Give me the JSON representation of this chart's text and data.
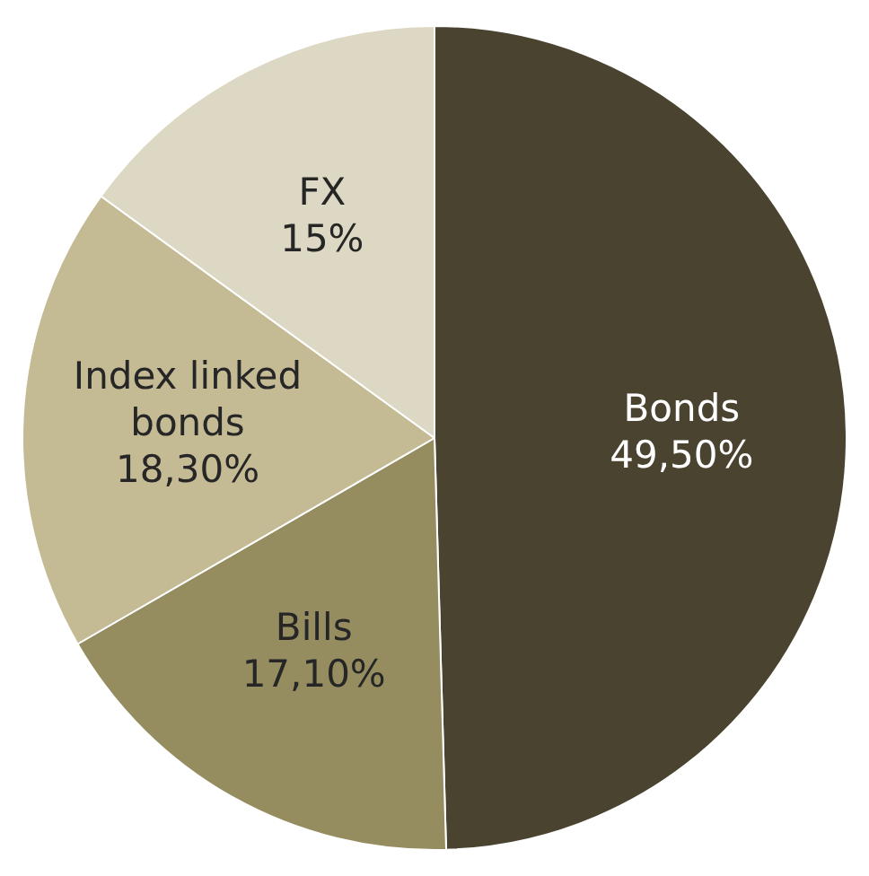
{
  "chart_data": {
    "type": "pie",
    "categories": [
      "Bonds",
      "Bills",
      "Index linked bonds",
      "FX"
    ],
    "values": [
      49.5,
      17.1,
      18.3,
      15
    ],
    "colors": [
      "#4a4330",
      "#958d60",
      "#c4bb95",
      "#ddd8c3"
    ],
    "value_labels": [
      "49,50%",
      "17,10%",
      "18,30%",
      "15%"
    ],
    "legend": false
  }
}
